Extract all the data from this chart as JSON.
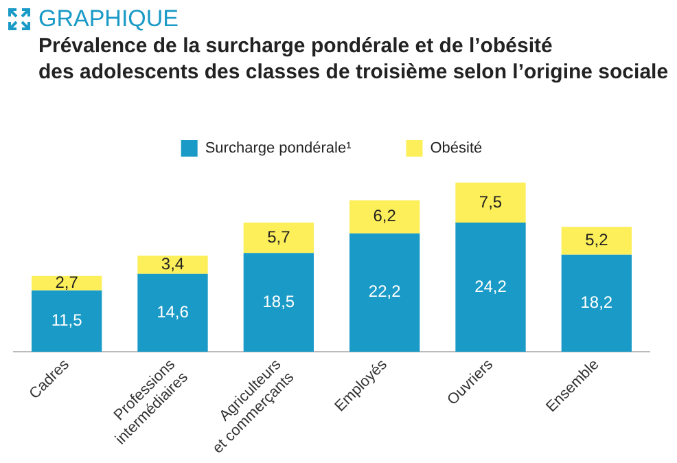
{
  "chart_data": {
    "type": "bar",
    "subtitle": "GRAPHIQUE",
    "title": "Prévalence de la surcharge pondérale et de l’obésité\ndes adolescents des classes de troisième selon l’origine sociale",
    "categories": [
      "Cadres",
      "Professions\nintermédiaires",
      "Agriculteurs\net commerçants",
      "Employés",
      "Ouvriers",
      "Ensemble"
    ],
    "series": [
      {
        "name": "Surcharge pondérale¹",
        "color": "#1a9ac6",
        "values": [
          11.5,
          14.6,
          18.5,
          22.2,
          24.2,
          18.2
        ],
        "value_labels": [
          "11,5",
          "14,6",
          "18,5",
          "22,2",
          "24,2",
          "18,2"
        ]
      },
      {
        "name": "Obésité",
        "color": "#fcef5a",
        "values": [
          2.7,
          3.4,
          5.7,
          6.2,
          7.5,
          5.2
        ],
        "value_labels": [
          "2,7",
          "3,4",
          "5,7",
          "6,2",
          "7,5",
          "5,2"
        ]
      }
    ],
    "stacked": true,
    "legend": "top",
    "grid": false
  }
}
